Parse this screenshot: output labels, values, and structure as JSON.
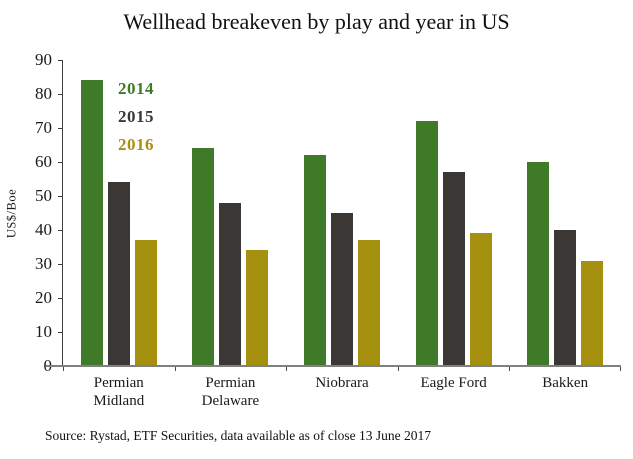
{
  "title": "Wellhead breakeven by play and year in US",
  "source": "Source: Rystad, ETF Securities, data available as of close 13 June 2017",
  "chart_data": {
    "type": "bar",
    "title": "Wellhead breakeven by play and year in US",
    "categories": [
      "Permian Midland",
      "Permian Delaware",
      "Niobrara",
      "Eagle Ford",
      "Bakken"
    ],
    "series": [
      {
        "name": "2014",
        "color": "#3f7a28",
        "values": [
          84,
          64,
          62,
          72,
          60
        ]
      },
      {
        "name": "2015",
        "color": "#3a3735",
        "values": [
          54,
          48,
          45,
          57,
          40
        ]
      },
      {
        "name": "2016",
        "color": "#a6900f",
        "values": [
          37,
          34,
          37,
          39,
          31
        ]
      }
    ],
    "xlabel": "",
    "ylabel": "US$/Boe",
    "ylim": [
      0,
      90
    ],
    "yticks": [
      0,
      10,
      20,
      30,
      40,
      50,
      60,
      70,
      80,
      90
    ],
    "grid": false,
    "legend_position": "inside-top-left"
  },
  "colors": {
    "background": "#ffffff",
    "axis_line": "#808080",
    "tick": "#3f3f3f",
    "text": "#1a1a1a"
  }
}
